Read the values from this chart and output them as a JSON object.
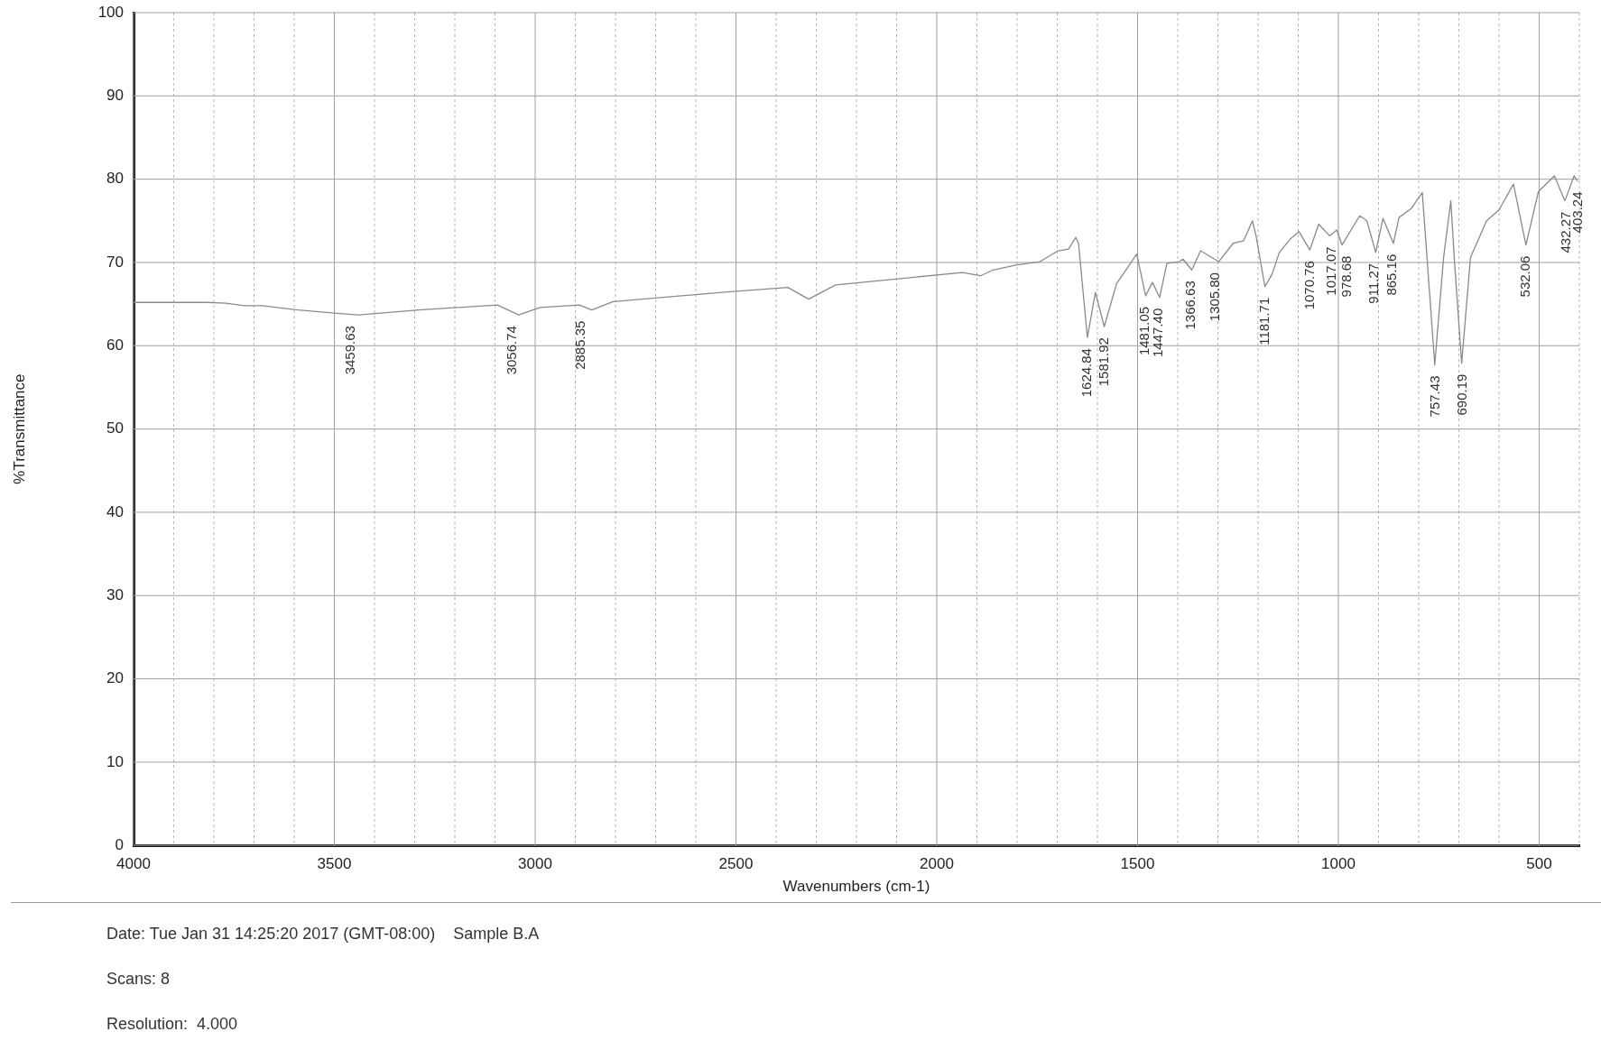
{
  "chart_data": {
    "type": "line",
    "xlabel": "Wavenumbers (cm-1)",
    "ylabel": "%Transmittance",
    "xlim": [
      4000,
      400
    ],
    "ylim": [
      0,
      100
    ],
    "xticks": [
      4000,
      {
        "value": 3900,
        "label": null
      },
      {
        "value": 3800,
        "label": null
      },
      {
        "value": 3700,
        "label": null
      },
      {
        "value": 3600,
        "label": null
      },
      3500,
      {
        "value": 3400,
        "label": null
      },
      {
        "value": 3300,
        "label": null
      },
      {
        "value": 3200,
        "label": null
      },
      {
        "value": 3100,
        "label": null
      },
      3000,
      {
        "value": 2900,
        "label": null
      },
      {
        "value": 2800,
        "label": null
      },
      {
        "value": 2700,
        "label": null
      },
      {
        "value": 2600,
        "label": null
      },
      2500,
      {
        "value": 2400,
        "label": null
      },
      {
        "value": 2300,
        "label": null
      },
      {
        "value": 2200,
        "label": null
      },
      {
        "value": 2100,
        "label": null
      },
      2000,
      {
        "value": 1900,
        "label": null
      },
      {
        "value": 1800,
        "label": null
      },
      {
        "value": 1700,
        "label": null
      },
      {
        "value": 1600,
        "label": null
      },
      1500,
      {
        "value": 1400,
        "label": null
      },
      {
        "value": 1300,
        "label": null
      },
      {
        "value": 1200,
        "label": null
      },
      {
        "value": 1100,
        "label": null
      },
      1000,
      {
        "value": 900,
        "label": null
      },
      {
        "value": 800,
        "label": null
      },
      {
        "value": 700,
        "label": null
      },
      {
        "value": 600,
        "label": null
      },
      500,
      {
        "value": 400,
        "label": null
      }
    ],
    "yticks": [
      0,
      10,
      20,
      30,
      40,
      50,
      60,
      70,
      80,
      90,
      100
    ],
    "grid": true,
    "marker": "none",
    "line_style": "solid",
    "series": [
      {
        "color": "#8a8a8a",
        "x": [
          4000,
          3815,
          3770,
          3725,
          3680,
          3590,
          3493,
          3440,
          3290,
          3094,
          3041,
          2988,
          2890,
          2859,
          2806,
          2536,
          2371,
          2319,
          2252,
          1936,
          1891,
          1860,
          1800,
          1743,
          1698,
          1672,
          1654,
          1647,
          1625,
          1605,
          1583,
          1552,
          1529,
          1502,
          1480,
          1463,
          1445,
          1427,
          1396,
          1387,
          1365,
          1343,
          1298,
          1262,
          1236,
          1214,
          1205,
          1183,
          1165,
          1147,
          1120,
          1098,
          1071,
          1049,
          1022,
          1004,
          991,
          947,
          929,
          907,
          889,
          863,
          849,
          818,
          791,
          760,
          738,
          720,
          711,
          693,
          671,
          631,
          600,
          564,
          533,
          502,
          462,
          436,
          413,
          405
        ],
        "values": [
          65.2,
          65.2,
          65.1,
          64.8,
          64.8,
          64.3,
          63.9,
          63.7,
          64.3,
          64.9,
          63.7,
          64.6,
          64.9,
          64.3,
          65.3,
          66.4,
          67.0,
          65.6,
          67.3,
          68.8,
          68.4,
          69.1,
          69.7,
          70.1,
          71.4,
          71.6,
          73.0,
          72.3,
          61.0,
          66.4,
          62.3,
          67.5,
          69.1,
          71.0,
          66.0,
          67.6,
          65.8,
          69.9,
          70.1,
          70.4,
          69.1,
          71.4,
          70.1,
          72.3,
          72.6,
          75.0,
          73.2,
          67.1,
          68.6,
          71.2,
          72.8,
          73.7,
          71.5,
          74.6,
          73.2,
          73.9,
          72.1,
          75.6,
          75.0,
          71.2,
          75.3,
          72.3,
          75.4,
          76.5,
          78.4,
          57.7,
          70.6,
          77.4,
          70.2,
          57.9,
          70.6,
          75.0,
          76.3,
          79.4,
          72.1,
          78.5,
          80.4,
          77.4,
          80.4,
          79.8
        ]
      }
    ],
    "annotations": [
      {
        "text": "3459.63",
        "x": 3459.63,
        "y": 63.7
      },
      {
        "text": "3056.74",
        "x": 3056.74,
        "y": 63.7
      },
      {
        "text": "2885.35",
        "x": 2885.35,
        "y": 64.3
      },
      {
        "text": "1624.84",
        "x": 1624.84,
        "y": 61.0
      },
      {
        "text": "1581.92",
        "x": 1581.92,
        "y": 62.3
      },
      {
        "text": "1481.05",
        "x": 1481.05,
        "y": 66.0
      },
      {
        "text": "1447.40",
        "x": 1447.4,
        "y": 65.8
      },
      {
        "text": "1366.63",
        "x": 1366.63,
        "y": 69.1
      },
      {
        "text": "1305.80",
        "x": 1305.8,
        "y": 70.1
      },
      {
        "text": "1181.71",
        "x": 1181.71,
        "y": 67.1
      },
      {
        "text": "1070.76",
        "x": 1070.76,
        "y": 71.5
      },
      {
        "text": "1017.07",
        "x": 1017.07,
        "y": 73.2
      },
      {
        "text": "978.68",
        "x": 978.68,
        "y": 72.1
      },
      {
        "text": "911.27",
        "x": 911.27,
        "y": 71.2
      },
      {
        "text": "865.16",
        "x": 865.16,
        "y": 72.3
      },
      {
        "text": "757.43",
        "x": 757.43,
        "y": 57.7
      },
      {
        "text": "690.19",
        "x": 690.19,
        "y": 57.9
      },
      {
        "text": "532.06",
        "x": 532.06,
        "y": 72.1
      },
      {
        "text": "432.27",
        "x": 432.27,
        "y": 77.4
      },
      {
        "text": "403.24",
        "x": 403.24,
        "y": 79.8
      },
      "Date: Tue Jan 31 14:25:20 2017 (GMT-08:00)    Sample B.A",
      "Scans: 8",
      "Resolution:  4.000"
    ]
  }
}
